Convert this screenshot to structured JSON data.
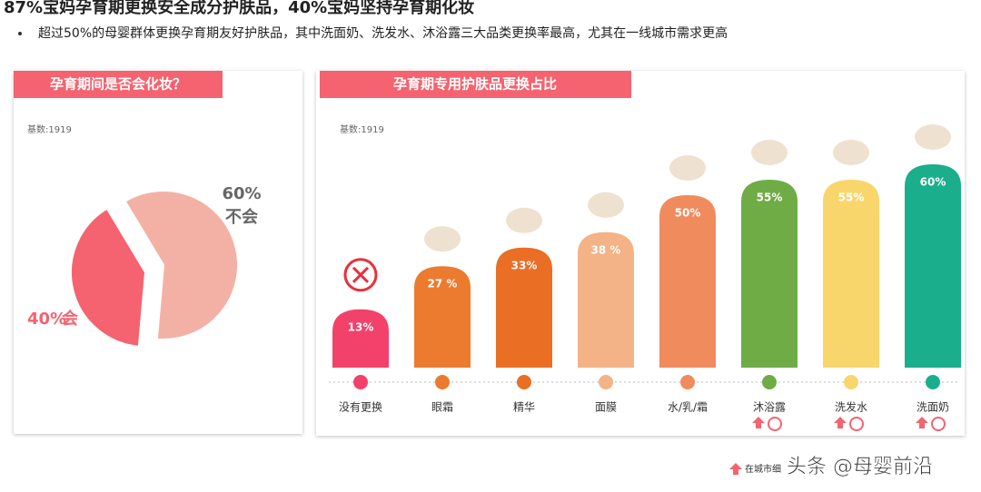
{
  "header": {
    "title": "87%宝妈孕育期更换安全成分护肤品，40%宝妈坚持孕育期化妆",
    "bullet": "超过50%的母婴群体更换孕育期友好护肤品，其中洗面奶、洗发水、沐浴露三大品类更换率最高，尤其在一线城市需求更高"
  },
  "chart_data": [
    {
      "type": "pie",
      "title": "孕育期间是否会化妆？",
      "note": "基数:1919",
      "categories": [
        "会",
        "不会"
      ],
      "values": [
        40,
        60
      ],
      "value_labels": [
        "40%",
        "60%"
      ],
      "colors": [
        "#f4636f",
        "#f3b1a6"
      ]
    },
    {
      "type": "bar",
      "title": "孕育期专用护肤品更换占比",
      "note": "基数:1919",
      "categories": [
        "没有更换",
        "眼霜",
        "精华",
        "面膜",
        "水/乳/霜",
        "沐浴露",
        "洗发水",
        "洗面奶"
      ],
      "values": [
        13,
        27,
        33,
        38,
        50,
        55,
        55,
        60
      ],
      "value_labels": [
        "13%",
        "27 %",
        "33%",
        "38 %",
        "50%",
        "55%",
        "55%",
        "60%"
      ],
      "colors": [
        "#f2416b",
        "#ec7b2f",
        "#ea6e24",
        "#f3b386",
        "#f08b5e",
        "#6fac46",
        "#f9d66b",
        "#1aae8c"
      ]
    }
  ],
  "footer": {
    "legend": "在城市细",
    "watermark": "头条 @母婴前沿"
  }
}
